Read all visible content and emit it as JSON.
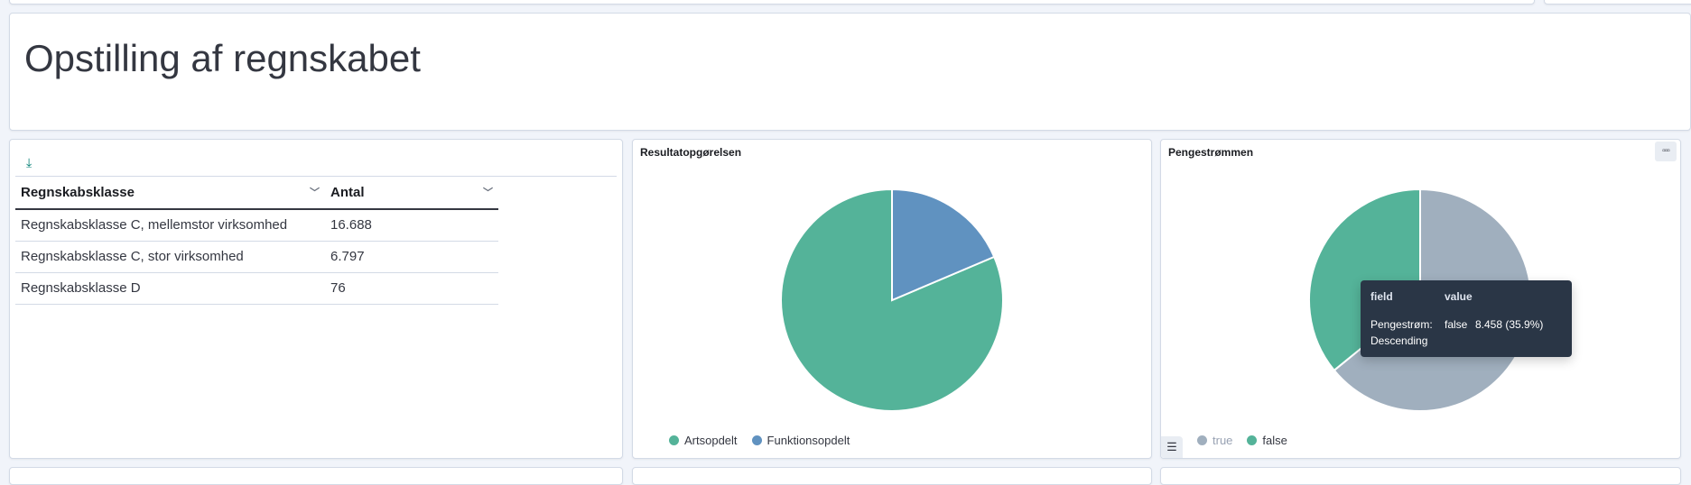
{
  "header": {
    "title": "Opstilling af regnskabet"
  },
  "table_panel": {
    "download_icon": "download-icon",
    "columns": [
      "Regnskabsklasse",
      "Antal"
    ],
    "rows": [
      [
        "Regnskabsklasse C, mellemstor virksomhed",
        "16.688"
      ],
      [
        "Regnskabsklasse C, stor virksomhed",
        "6.797"
      ],
      [
        "Regnskabsklasse D",
        "76"
      ]
    ]
  },
  "chart_data": [
    {
      "type": "pie",
      "title": "Resultatopgørelsen",
      "slices": [
        {
          "label": "Artsopdelt",
          "value": 81.4,
          "color": "#54b399"
        },
        {
          "label": "Funktionsopdelt",
          "value": 18.6,
          "color": "#6092c0"
        }
      ]
    },
    {
      "type": "pie",
      "title": "Pengestrømmen",
      "slices": [
        {
          "label": "true",
          "value": 64.1,
          "color": "#a0afbe"
        },
        {
          "label": "false",
          "value": 35.9,
          "color": "#54b399"
        }
      ]
    }
  ],
  "tooltip": {
    "field_header": "field",
    "value_header": "value",
    "field": "Pengestrøm: Descending",
    "value": "false",
    "count": "8.458 (35.9%)"
  }
}
